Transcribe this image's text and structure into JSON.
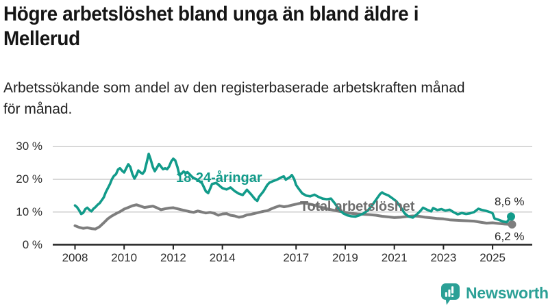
{
  "header": {
    "title_lines": [
      "Högre arbetslöshet bland unga än bland äldre i",
      "Mellerud"
    ],
    "subtitle_lines": [
      "Arbetssökande som andel av den registerbaserade arbetskraften månad",
      "för månad."
    ]
  },
  "footer": {
    "brand": "Newsworthy",
    "logo_icon": "newsworthy-bar-chart-bubble-icon",
    "brand_color": "#2ba096"
  },
  "colors": {
    "accent_teal": "#129b8a",
    "line_gray": "#7e7e7e",
    "label_gray": "#6e6e6e",
    "grid": "#cccccc",
    "axis": "#222222",
    "text": "#222222"
  },
  "chart_data": {
    "type": "line",
    "title": "Högre arbetslöshet bland unga än bland äldre i Mellerud",
    "subtitle": "Arbetssökande som andel av den registerbaserade arbetskraften månad för månad.",
    "xlabel": "",
    "ylabel": "",
    "y_unit": "%",
    "x_unit": "year (monthly data)",
    "xlim": [
      2008,
      2025.75
    ],
    "ylim": [
      0,
      30
    ],
    "grid": "horizontal",
    "legend_position": "inline-labels",
    "x_ticks": [
      2008,
      2010,
      2012,
      2014,
      2017,
      2019,
      2021,
      2023,
      2025
    ],
    "y_ticks": [
      {
        "value": 0,
        "label": "0 %"
      },
      {
        "value": 10,
        "label": "10 %"
      },
      {
        "value": 20,
        "label": "20 %"
      },
      {
        "value": 30,
        "label": "30 %"
      }
    ],
    "series": [
      {
        "name": "Total arbetslöshet",
        "color": "#7e7e7e",
        "width": 4,
        "end_label": "6,2 %",
        "end_value": 6.2,
        "points": [
          [
            2008.0,
            5.8
          ],
          [
            2008.17,
            5.3
          ],
          [
            2008.33,
            5.0
          ],
          [
            2008.5,
            5.2
          ],
          [
            2008.67,
            4.9
          ],
          [
            2008.83,
            4.8
          ],
          [
            2009.0,
            5.5
          ],
          [
            2009.17,
            6.7
          ],
          [
            2009.33,
            7.9
          ],
          [
            2009.5,
            8.8
          ],
          [
            2009.67,
            9.5
          ],
          [
            2009.83,
            10.1
          ],
          [
            2010.0,
            10.9
          ],
          [
            2010.17,
            11.4
          ],
          [
            2010.33,
            11.9
          ],
          [
            2010.5,
            12.2
          ],
          [
            2010.67,
            11.8
          ],
          [
            2010.83,
            11.4
          ],
          [
            2011.0,
            11.6
          ],
          [
            2011.17,
            11.8
          ],
          [
            2011.33,
            11.3
          ],
          [
            2011.5,
            10.7
          ],
          [
            2011.67,
            11.0
          ],
          [
            2011.83,
            11.2
          ],
          [
            2012.0,
            11.3
          ],
          [
            2012.17,
            11.0
          ],
          [
            2012.33,
            10.7
          ],
          [
            2012.5,
            10.4
          ],
          [
            2012.67,
            10.1
          ],
          [
            2012.83,
            9.9
          ],
          [
            2013.0,
            10.3
          ],
          [
            2013.17,
            10.0
          ],
          [
            2013.33,
            9.7
          ],
          [
            2013.5,
            9.9
          ],
          [
            2013.67,
            9.6
          ],
          [
            2013.83,
            9.0
          ],
          [
            2014.0,
            9.4
          ],
          [
            2014.17,
            9.5
          ],
          [
            2014.33,
            9.0
          ],
          [
            2014.5,
            8.8
          ],
          [
            2014.67,
            8.4
          ],
          [
            2014.83,
            8.6
          ],
          [
            2015.0,
            9.1
          ],
          [
            2015.17,
            9.3
          ],
          [
            2015.33,
            9.6
          ],
          [
            2015.5,
            9.9
          ],
          [
            2015.67,
            10.2
          ],
          [
            2015.83,
            10.4
          ],
          [
            2016.0,
            11.0
          ],
          [
            2016.17,
            11.5
          ],
          [
            2016.33,
            11.9
          ],
          [
            2016.5,
            11.6
          ],
          [
            2016.67,
            11.8
          ],
          [
            2016.83,
            12.1
          ],
          [
            2017.0,
            12.4
          ],
          [
            2017.17,
            12.7
          ],
          [
            2017.33,
            12.8
          ],
          [
            2017.5,
            12.5
          ],
          [
            2017.67,
            12.2
          ],
          [
            2017.83,
            11.9
          ],
          [
            2018.0,
            11.5
          ],
          [
            2018.25,
            11.0
          ],
          [
            2018.5,
            10.6
          ],
          [
            2018.75,
            10.2
          ],
          [
            2019.0,
            9.9
          ],
          [
            2019.25,
            9.6
          ],
          [
            2019.5,
            9.4
          ],
          [
            2019.75,
            9.3
          ],
          [
            2020.0,
            9.2
          ],
          [
            2020.25,
            9.0
          ],
          [
            2020.5,
            8.7
          ],
          [
            2020.75,
            8.5
          ],
          [
            2021.0,
            8.3
          ],
          [
            2021.25,
            8.4
          ],
          [
            2021.5,
            8.6
          ],
          [
            2021.75,
            8.8
          ],
          [
            2022.0,
            8.7
          ],
          [
            2022.25,
            8.4
          ],
          [
            2022.5,
            8.2
          ],
          [
            2022.75,
            8.0
          ],
          [
            2023.0,
            7.9
          ],
          [
            2023.25,
            7.6
          ],
          [
            2023.5,
            7.5
          ],
          [
            2023.75,
            7.4
          ],
          [
            2024.0,
            7.3
          ],
          [
            2024.25,
            7.2
          ],
          [
            2024.5,
            6.9
          ],
          [
            2024.75,
            6.6
          ],
          [
            2025.0,
            6.7
          ],
          [
            2025.25,
            6.5
          ],
          [
            2025.5,
            6.3
          ],
          [
            2025.75,
            6.2
          ]
        ]
      },
      {
        "name": "18-24-åringar",
        "color": "#129b8a",
        "width": 3.6,
        "end_label": "8,6 %",
        "end_value": 8.6,
        "points": [
          [
            2008.0,
            12.0
          ],
          [
            2008.08,
            11.5
          ],
          [
            2008.17,
            10.5
          ],
          [
            2008.25,
            9.4
          ],
          [
            2008.33,
            9.7
          ],
          [
            2008.42,
            10.9
          ],
          [
            2008.5,
            11.3
          ],
          [
            2008.58,
            10.7
          ],
          [
            2008.67,
            10.2
          ],
          [
            2008.75,
            11.0
          ],
          [
            2008.83,
            11.5
          ],
          [
            2008.92,
            12.2
          ],
          [
            2009.0,
            12.7
          ],
          [
            2009.08,
            13.5
          ],
          [
            2009.17,
            14.5
          ],
          [
            2009.25,
            16.0
          ],
          [
            2009.33,
            17.2
          ],
          [
            2009.42,
            18.5
          ],
          [
            2009.5,
            20.0
          ],
          [
            2009.58,
            21.0
          ],
          [
            2009.67,
            21.6
          ],
          [
            2009.75,
            23.0
          ],
          [
            2009.83,
            23.4
          ],
          [
            2009.92,
            22.6
          ],
          [
            2010.0,
            22.1
          ],
          [
            2010.08,
            23.3
          ],
          [
            2010.17,
            24.6
          ],
          [
            2010.25,
            23.8
          ],
          [
            2010.33,
            21.7
          ],
          [
            2010.42,
            20.2
          ],
          [
            2010.5,
            21.3
          ],
          [
            2010.58,
            22.7
          ],
          [
            2010.67,
            22.1
          ],
          [
            2010.75,
            21.7
          ],
          [
            2010.83,
            22.5
          ],
          [
            2010.92,
            25.2
          ],
          [
            2011.0,
            27.8
          ],
          [
            2011.08,
            26.1
          ],
          [
            2011.17,
            23.7
          ],
          [
            2011.25,
            22.5
          ],
          [
            2011.33,
            23.5
          ],
          [
            2011.42,
            24.7
          ],
          [
            2011.5,
            23.9
          ],
          [
            2011.58,
            23.1
          ],
          [
            2011.67,
            23.4
          ],
          [
            2011.75,
            23.1
          ],
          [
            2011.83,
            23.9
          ],
          [
            2011.92,
            25.5
          ],
          [
            2012.0,
            26.3
          ],
          [
            2012.08,
            25.8
          ],
          [
            2012.17,
            23.8
          ],
          [
            2012.25,
            21.3
          ],
          [
            2012.33,
            21.7
          ],
          [
            2012.42,
            22.4
          ],
          [
            2012.5,
            21.9
          ],
          [
            2012.58,
            22.2
          ],
          [
            2012.67,
            21.5
          ],
          [
            2012.75,
            20.9
          ],
          [
            2012.83,
            20.4
          ],
          [
            2012.92,
            20.1
          ],
          [
            2013.0,
            19.8
          ],
          [
            2013.17,
            18.8
          ],
          [
            2013.33,
            16.3
          ],
          [
            2013.42,
            15.8
          ],
          [
            2013.5,
            17.1
          ],
          [
            2013.58,
            18.6
          ],
          [
            2013.75,
            18.9
          ],
          [
            2013.92,
            17.8
          ],
          [
            2014.0,
            17.3
          ],
          [
            2014.17,
            16.9
          ],
          [
            2014.33,
            17.5
          ],
          [
            2014.5,
            16.4
          ],
          [
            2014.67,
            15.6
          ],
          [
            2014.83,
            15.2
          ],
          [
            2015.0,
            16.8
          ],
          [
            2015.17,
            15.4
          ],
          [
            2015.33,
            13.9
          ],
          [
            2015.42,
            13.4
          ],
          [
            2015.5,
            14.7
          ],
          [
            2015.67,
            16.3
          ],
          [
            2015.83,
            18.3
          ],
          [
            2015.92,
            19.0
          ],
          [
            2016.08,
            19.5
          ],
          [
            2016.25,
            20.0
          ],
          [
            2016.42,
            20.7
          ],
          [
            2016.5,
            20.9
          ],
          [
            2016.58,
            19.9
          ],
          [
            2016.75,
            20.7
          ],
          [
            2016.83,
            21.3
          ],
          [
            2016.92,
            20.1
          ],
          [
            2017.0,
            18.3
          ],
          [
            2017.08,
            17.4
          ],
          [
            2017.25,
            15.7
          ],
          [
            2017.42,
            15.0
          ],
          [
            2017.58,
            14.8
          ],
          [
            2017.75,
            15.3
          ],
          [
            2017.92,
            14.6
          ],
          [
            2018.08,
            14.1
          ],
          [
            2018.25,
            13.9
          ],
          [
            2018.42,
            14.1
          ],
          [
            2018.58,
            12.6
          ],
          [
            2018.75,
            10.8
          ],
          [
            2018.92,
            9.6
          ],
          [
            2019.08,
            9.0
          ],
          [
            2019.25,
            8.7
          ],
          [
            2019.42,
            8.6
          ],
          [
            2019.58,
            9.0
          ],
          [
            2019.75,
            9.6
          ],
          [
            2019.92,
            10.5
          ],
          [
            2020.08,
            11.9
          ],
          [
            2020.25,
            13.7
          ],
          [
            2020.42,
            15.5
          ],
          [
            2020.5,
            16.0
          ],
          [
            2020.58,
            15.6
          ],
          [
            2020.75,
            15.1
          ],
          [
            2020.92,
            14.2
          ],
          [
            2021.08,
            13.3
          ],
          [
            2021.25,
            11.6
          ],
          [
            2021.42,
            9.6
          ],
          [
            2021.58,
            8.6
          ],
          [
            2021.75,
            8.3
          ],
          [
            2021.92,
            9.3
          ],
          [
            2022.08,
            10.5
          ],
          [
            2022.17,
            11.3
          ],
          [
            2022.33,
            10.7
          ],
          [
            2022.5,
            10.2
          ],
          [
            2022.58,
            11.2
          ],
          [
            2022.75,
            10.6
          ],
          [
            2022.92,
            10.9
          ],
          [
            2023.08,
            10.4
          ],
          [
            2023.25,
            10.7
          ],
          [
            2023.42,
            9.9
          ],
          [
            2023.58,
            9.3
          ],
          [
            2023.75,
            9.7
          ],
          [
            2023.92,
            9.4
          ],
          [
            2024.08,
            9.6
          ],
          [
            2024.25,
            10.0
          ],
          [
            2024.42,
            11.0
          ],
          [
            2024.58,
            10.6
          ],
          [
            2024.75,
            10.3
          ],
          [
            2024.92,
            9.9
          ],
          [
            2025.0,
            9.6
          ],
          [
            2025.08,
            8.0
          ],
          [
            2025.25,
            7.6
          ],
          [
            2025.42,
            7.1
          ],
          [
            2025.58,
            6.9
          ],
          [
            2025.75,
            8.6
          ]
        ]
      }
    ]
  }
}
